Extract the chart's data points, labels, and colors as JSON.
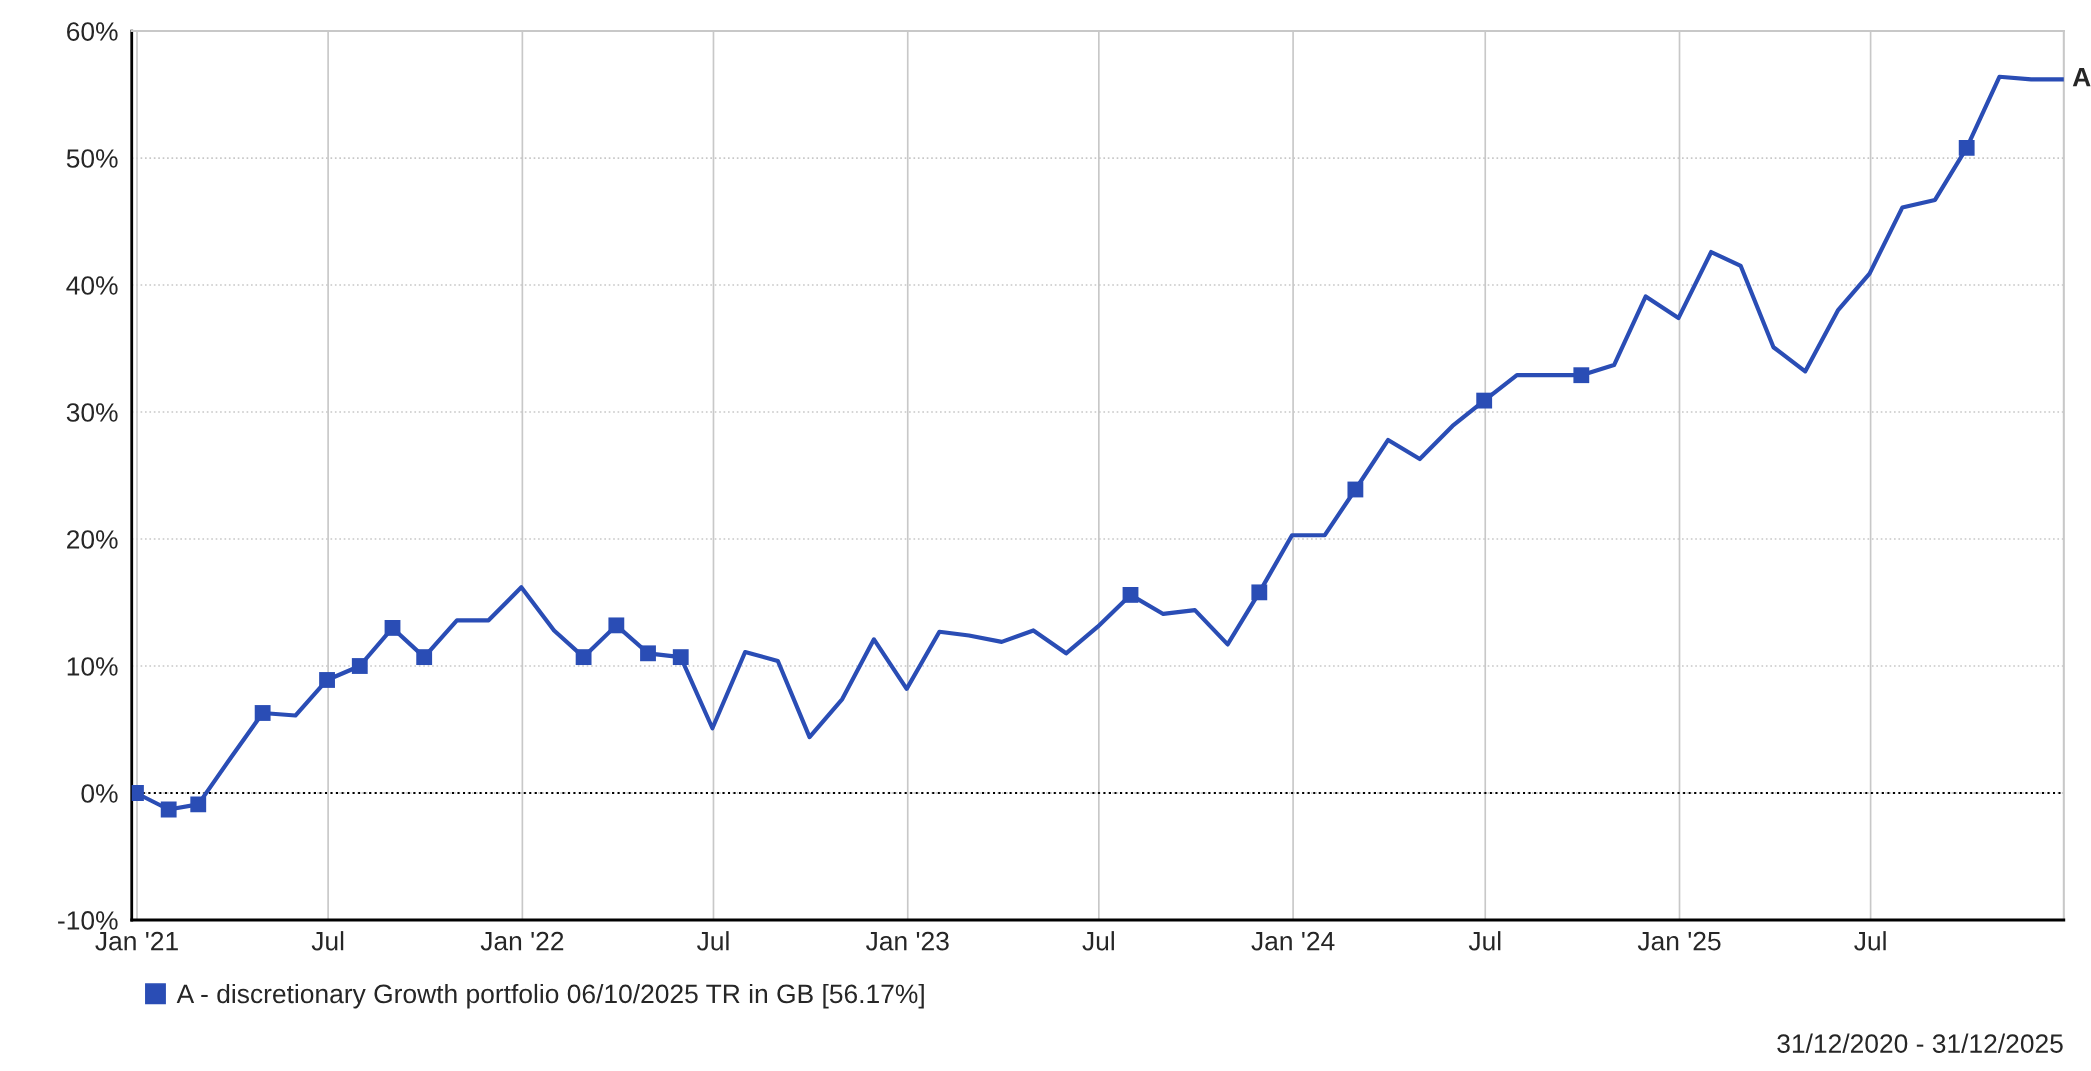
{
  "chart_data": {
    "type": "line",
    "x": [
      "2020-12-31",
      "2021-01-31",
      "2021-02-28",
      "2021-03-31",
      "2021-04-30",
      "2021-05-31",
      "2021-06-30",
      "2021-07-31",
      "2021-08-31",
      "2021-09-30",
      "2021-10-31",
      "2021-11-30",
      "2021-12-31",
      "2022-01-31",
      "2022-02-28",
      "2022-03-31",
      "2022-04-30",
      "2022-05-31",
      "2022-06-30",
      "2022-07-31",
      "2022-08-31",
      "2022-09-30",
      "2022-10-31",
      "2022-11-30",
      "2022-12-31",
      "2023-01-31",
      "2023-02-28",
      "2023-03-31",
      "2023-04-30",
      "2023-05-31",
      "2023-06-30",
      "2023-07-31",
      "2023-08-31",
      "2023-09-30",
      "2023-10-31",
      "2023-11-30",
      "2023-12-31",
      "2024-01-31",
      "2024-02-29",
      "2024-03-31",
      "2024-04-30",
      "2024-05-31",
      "2024-06-30",
      "2024-07-31",
      "2024-08-31",
      "2024-09-30",
      "2024-10-31",
      "2024-11-30",
      "2024-12-31",
      "2025-01-31",
      "2025-02-28",
      "2025-03-31",
      "2025-04-30",
      "2025-05-31",
      "2025-06-30",
      "2025-07-31",
      "2025-08-31",
      "2025-09-30",
      "2025-10-31",
      "2025-11-30",
      "2025-12-31"
    ],
    "series": [
      {
        "name": "A - discretionary Growth portfolio 06/10/2025 TR in GB [56.17%]",
        "color": "#2a4db5",
        "marker": "none",
        "line_style": "solid",
        "values": [
          0,
          -1.3,
          -0.9,
          2.8,
          6.3,
          6.1,
          8.9,
          10.0,
          13.0,
          10.7,
          13.6,
          13.6,
          16.2,
          12.8,
          10.7,
          13.2,
          11.0,
          10.7,
          5.1,
          11.1,
          10.4,
          4.4,
          7.4,
          12.1,
          8.2,
          12.7,
          12.4,
          11.9,
          12.8,
          11.0,
          13.1,
          15.6,
          14.1,
          14.4,
          11.7,
          15.8,
          20.3,
          20.3,
          23.9,
          27.8,
          26.3,
          28.9,
          30.9,
          32.9,
          32.9,
          32.9,
          33.7,
          39.1,
          37.4,
          42.6,
          41.5,
          35.1,
          33.2,
          38.0,
          40.9,
          46.1,
          46.7,
          50.8,
          56.4,
          56.2,
          56.2
        ]
      },
      {
        "color": "#2a4db5",
        "type": "scatter",
        "marker": "square",
        "x": [
          "2020-12-31",
          "2021-01-31",
          "2021-02-28",
          "2021-04-30",
          "2021-06-30",
          "2021-07-31",
          "2021-08-31",
          "2021-09-30",
          "2022-02-28",
          "2022-03-31",
          "2022-04-30",
          "2022-05-31",
          "2023-07-31",
          "2023-11-30",
          "2024-02-29",
          "2024-06-30",
          "2024-09-30",
          "2025-09-30"
        ],
        "values": [
          0,
          -1.3,
          -0.9,
          6.3,
          8.9,
          10.0,
          13.0,
          10.7,
          10.7,
          13.2,
          11.0,
          10.7,
          15.6,
          15.8,
          23.9,
          30.9,
          32.9,
          50.8
        ]
      }
    ],
    "xlim": [
      "2020-12-27",
      "2025-12-31"
    ],
    "xticks": [
      {
        "value": "2021-01-01",
        "label": "Jan '21"
      },
      {
        "value": "2021-07-01",
        "label": "Jul"
      },
      {
        "value": "2022-01-01",
        "label": "Jan '22"
      },
      {
        "value": "2022-07-01",
        "label": "Jul"
      },
      {
        "value": "2023-01-01",
        "label": "Jan '23"
      },
      {
        "value": "2023-07-01",
        "label": "Jul"
      },
      {
        "value": "2024-01-01",
        "label": "Jan '24"
      },
      {
        "value": "2024-07-01",
        "label": "Jul"
      },
      {
        "value": "2025-01-01",
        "label": "Jan '25"
      },
      {
        "value": "2025-07-01",
        "label": "Jul"
      }
    ],
    "ylim": [
      -10,
      60
    ],
    "yticks": [
      {
        "value": -10,
        "label": "-10%"
      },
      {
        "value": 0,
        "label": "0%"
      },
      {
        "value": 10,
        "label": "10%"
      },
      {
        "value": 20,
        "label": "20%"
      },
      {
        "value": 30,
        "label": "30%"
      },
      {
        "value": 40,
        "label": "40%"
      },
      {
        "value": 50,
        "label": "50%"
      },
      {
        "value": 60,
        "label": "60%"
      }
    ],
    "ref_lines": [
      {
        "axis": "y",
        "value": 0,
        "color": "#000000",
        "line_style": "dotted"
      }
    ],
    "grid": true,
    "legend": "bottom left",
    "annotations": [
      {
        "text": "A",
        "x": "2025-12-31",
        "y": 56.2
      },
      "31/12/2020 - 31/12/2025"
    ]
  }
}
